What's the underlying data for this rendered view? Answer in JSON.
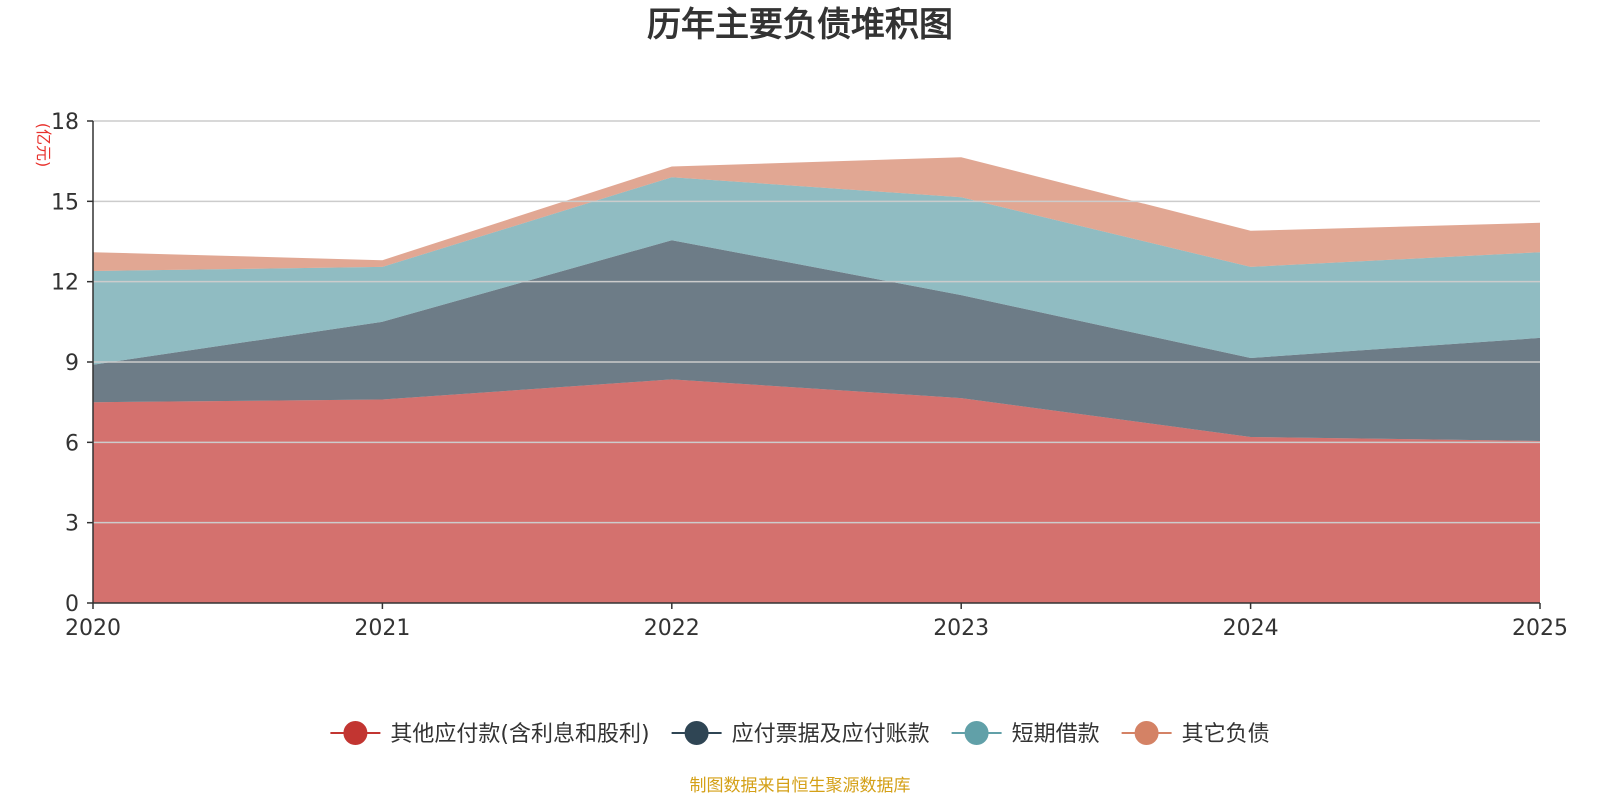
{
  "chart_data": {
    "type": "area",
    "stacked": true,
    "title": "历年主要负债堆积图",
    "ylabel": "(亿元)",
    "xlabel": "",
    "x": [
      "2020",
      "2021",
      "2022",
      "2023",
      "2024",
      "2025"
    ],
    "ylim": [
      0,
      18
    ],
    "yticks": [
      0,
      3,
      6,
      9,
      12,
      15,
      18
    ],
    "grid": true,
    "legend_position": "bottom",
    "series": [
      {
        "name": "其他应付款(含利息和股利)",
        "color": "#c23531",
        "values": [
          7.5,
          7.6,
          8.35,
          7.65,
          6.2,
          6.05
        ]
      },
      {
        "name": "应付票据及应付账款",
        "color": "#2f4554",
        "values": [
          1.4,
          2.9,
          5.2,
          3.85,
          2.95,
          3.85
        ]
      },
      {
        "name": "短期借款",
        "color": "#61a0a8",
        "values": [
          3.5,
          2.05,
          2.35,
          3.65,
          3.4,
          3.2
        ]
      },
      {
        "name": "其它负债",
        "color": "#d48265",
        "values": [
          0.7,
          0.25,
          0.4,
          1.5,
          1.35,
          1.1
        ]
      }
    ],
    "source": "制图数据来自恒生聚源数据库",
    "colors": {
      "axis": "#333333",
      "grid": "#cccccc",
      "unit": "#e8322d",
      "source": "#d4a017"
    }
  }
}
